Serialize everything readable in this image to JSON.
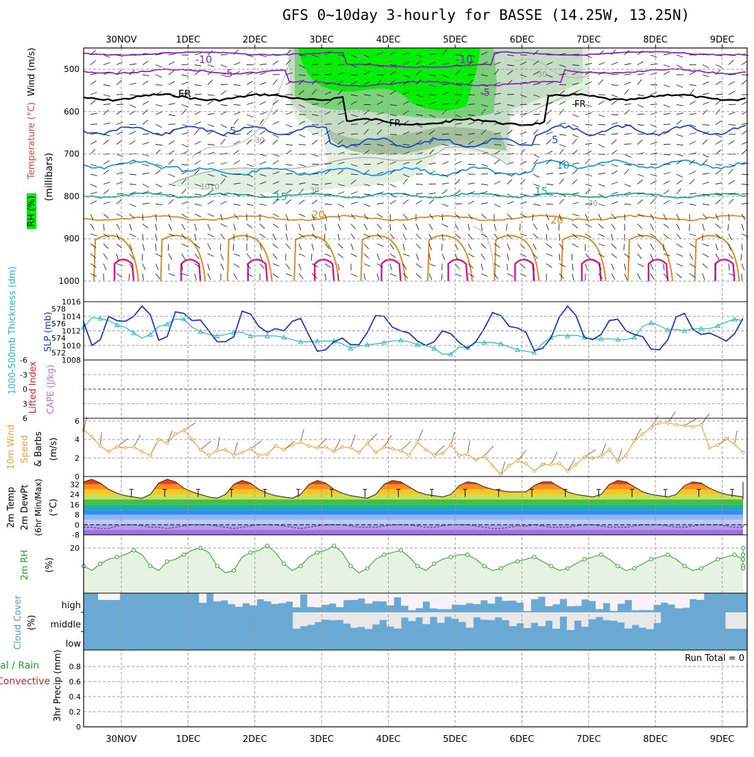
{
  "title": "GFS 0~10day 3-hourly for BASSE (14.25W, 13.25N)",
  "dates": [
    "30NOV",
    "1DEC",
    "2DEC",
    "3DEC",
    "4DEC",
    "5DEC",
    "6DEC",
    "7DEC",
    "8DEC",
    "9DEC"
  ],
  "colors": {
    "rh_light": "#e3efe0",
    "rh_mid": "#c7dcc4",
    "rh_dark": "#93b48f",
    "rh_green1": "#79d279",
    "rh_green2": "#00ee00",
    "purple": "#9020c8",
    "blue": "#1848d8",
    "sky": "#1898e0",
    "teal": "#10b090",
    "orange": "#e0881c",
    "magenta": "#e0108c",
    "slp": "#1836c8",
    "thick": "#20b8c0",
    "wind10": "#f0a040",
    "cloud": "#6aa9d4",
    "cloudpale": "#f6f2f8",
    "cloudgray": "#e8e8e8",
    "li": "#e02020",
    "rhfill": "#e6f3e3",
    "rhline": "#20a020"
  },
  "panels": {
    "upper": {
      "label_rh": "RH (%)",
      "label_temp": "Temperature (°C)",
      "label_wind": "Wind (m/s)",
      "label_mb": "(millibars)",
      "yticks": [
        "500",
        "600",
        "700",
        "800",
        "900",
        "1000"
      ],
      "contours": [
        {
          "name": "-10",
          "text": "-10"
        },
        {
          "name": "-5",
          "text": "-5"
        },
        {
          "name": "FR",
          "text": "FR"
        },
        {
          "name": "5",
          "text": "5"
        },
        {
          "name": "10",
          "text": "10"
        },
        {
          "name": "15",
          "text": "15"
        },
        {
          "name": "20",
          "text": "20"
        }
      ],
      "rh_labels": [
        "10",
        "30",
        "30",
        "30",
        "30",
        "10",
        "10"
      ]
    },
    "slp": {
      "label_thick": "1000-500mb Thickness (dm)",
      "label_slp": "SLP (mb)",
      "yticks_left": [
        "578",
        "576",
        "574",
        "572"
      ],
      "yticks_right": [
        "1016",
        "1014",
        "1012",
        "1010",
        "1008"
      ]
    },
    "cape": {
      "label_li": "Lifted Index",
      "label_cape": "CAPE (J/kg)",
      "yticks": [
        "-6",
        "-3",
        "0",
        "3",
        "6"
      ]
    },
    "wind10": {
      "label_a": "10m Wind",
      "label_b": "Speed",
      "label_c": "& Barbs",
      "label_unit": "(m/s)",
      "yticks": [
        "6",
        "4",
        "2",
        "0"
      ]
    },
    "temp2m": {
      "label_a": "2m Temp",
      "label_b": "2m DewPt",
      "label_c": "(6hr Min/Max)",
      "label_unit": "(°C)",
      "yticks": [
        "32",
        "24",
        "16",
        "8",
        "0",
        "-8"
      ]
    },
    "rh2m": {
      "label_a": "2m RH",
      "label_unit": "(%)",
      "yticks": [
        "20"
      ]
    },
    "cloud": {
      "label_a": "Cloud Cover",
      "label_unit": "(%)",
      "levels": [
        "high",
        "middle",
        "low"
      ]
    },
    "precip": {
      "label_a": "Total / Rain",
      "label_b": "Convective",
      "label_c": "3hr Precip (mm)",
      "run_total": "Run Total = 0",
      "yticks": [
        "0.8",
        "0.6",
        "0.4",
        "0.2",
        "0"
      ]
    }
  },
  "chart_data": [
    {
      "type": "line",
      "title": "GFS 0~10day 3-hourly for BASSE (14.25W, 13.25N)",
      "panel": "Sea level pressure and 1000-500mb thickness",
      "x_labels": [
        "30NOV",
        "1DEC",
        "2DEC",
        "3DEC",
        "4DEC",
        "5DEC",
        "6DEC",
        "7DEC",
        "8DEC",
        "9DEC"
      ],
      "series": [
        {
          "name": "SLP (mb)",
          "values": [
            1013.2,
            1010,
            1010.8,
            1014,
            1013.4,
            1013.3,
            1014,
            1015.4,
            1014.2,
            1010.7,
            1011.2,
            1014.6,
            1014.4,
            1013.4,
            1013.5,
            1012,
            1010.5,
            1010.5,
            1011.2,
            1014.7,
            1014.3,
            1012.6,
            1011.8,
            1012.3,
            1012,
            1013.3,
            1013.7,
            1011.4,
            1009.2,
            1009.4,
            1010.5,
            1011,
            1010.1,
            1010.1,
            1011.8,
            1014.1,
            1014,
            1012.5,
            1012,
            1011.7,
            1010.6,
            1010,
            1010.5,
            1012,
            1011.6,
            1010.4,
            1009.6,
            1010.5,
            1012.3,
            1014.5,
            1014.1,
            1012.6,
            1012.4,
            1011.8,
            1009.3,
            1009.6,
            1011,
            1013.9,
            1015.4,
            1014.1,
            1011.1,
            1010.8,
            1011.5,
            1013.4,
            1013.6,
            1012,
            1011.5,
            1011.2,
            1009.5,
            1009.4,
            1010.8,
            1013.9,
            1014.4,
            1012.2,
            1011.5,
            1011.7,
            1011.2,
            1010.6,
            1011.6,
            1013.7,
            1013.9,
            1012.2,
            1011.5,
            1011.5,
            1009.4,
            1009.3,
            1011.6,
            1013.7,
            1014.1,
            1012.8,
            1011.4,
            1011.6,
            1011.2,
            1011.2,
            1010.8,
            1010.8,
            1011.3,
            1011.7,
            1011.7,
            1011.8,
            1012
          ]
        },
        {
          "name": "Thickness (dm)",
          "values": [
            575.5,
            576.8,
            576.7,
            576.4,
            575.8,
            575.5,
            574.7,
            574,
            574.5,
            575.6,
            575.9,
            576.6,
            576.6,
            575.5,
            574.9,
            574.5,
            574.3,
            574.5,
            574.8,
            574.8,
            574.3,
            574.3,
            574.3,
            574.3,
            574.1,
            573.8,
            573.5,
            573.5,
            573.6,
            573.6,
            573.6,
            573.2,
            572.6,
            572.9,
            573.1,
            573.2,
            573.4,
            573.6,
            573.7,
            573.5,
            573.1,
            573,
            572.6,
            571.8,
            571.8,
            572.8,
            572.7,
            573.4,
            573.4,
            573.4,
            573.2,
            572.8,
            572.4,
            572.2,
            572,
            573.3,
            574.1,
            574.4,
            574.3,
            574.4,
            574.1,
            573.9,
            573.9,
            573.9,
            573.8,
            573.8,
            574.1,
            575.6,
            576.1,
            575.7,
            575.1,
            575.2,
            575,
            575.3,
            575.3,
            575.3,
            575.7,
            576.2,
            576.6,
            576.4,
            575.7,
            575.3,
            575.3,
            575.3,
            575.5,
            576.4,
            576.4,
            576.3,
            576.9,
            577.2,
            576.4,
            575.4,
            575.2,
            575.5,
            576,
            576,
            576,
            576,
            576,
            576,
            576
          ]
        }
      ],
      "ylim_slp": [
        1008,
        1016
      ],
      "ylim_thick": [
        571,
        579
      ]
    },
    {
      "type": "line",
      "panel": "Lifted index",
      "series": [
        {
          "name": "Lifted Index",
          "values": [
            0
          ]
        }
      ],
      "ylim": [
        -6,
        6
      ]
    },
    {
      "type": "line",
      "panel": "10m wind speed",
      "series": [
        {
          "name": "10m Wind Speed (m/s)",
          "values": [
            5,
            4.3,
            3.3,
            2.7,
            3.2,
            3.1,
            3.2,
            2.7,
            2.3,
            4,
            3.6,
            4.6,
            5,
            4,
            2.9,
            2.3,
            2.8,
            2.9,
            2.3,
            2.6,
            3,
            2.3,
            2.4,
            3.3,
            2.9,
            3.4,
            3.7,
            3.3,
            3.1,
            3.2,
            2.7,
            3.2,
            3.1,
            2.6,
            3.6,
            2.6,
            3.2,
            3,
            2.8,
            2.3,
            3.7,
            2.9,
            2.3,
            2.5,
            3.4,
            2.3,
            2.4,
            1.8,
            2.2,
            1.2,
            0.2,
            1.2,
            1.7,
            1.4,
            0.6,
            1.3,
            1.3,
            1.4,
            0.6,
            1.3,
            2.1,
            2,
            2.2,
            2.9,
            1.6,
            2.3,
            3.9,
            4.6,
            5.3,
            5.8,
            5.8,
            5.6,
            5.5,
            5.4,
            5.6,
            3.1,
            3.4,
            4.1,
            3.5,
            2.6,
            3.5,
            3.5,
            3.1,
            2.5,
            4.1,
            4.5,
            4.7,
            2.8,
            2.6,
            2.3,
            2.5,
            2.5,
            2.5,
            2.3,
            2.9,
            4.4,
            2.3,
            2.5,
            2.2,
            4.5,
            4.4,
            3.9,
            3.3,
            2.4,
            2,
            1.5,
            3.1,
            3,
            2.3,
            2.3,
            1.7,
            2.2,
            2,
            1.7,
            1.9,
            2.2
          ]
        }
      ],
      "ylim": [
        0,
        6
      ]
    },
    {
      "type": "area",
      "panel": "2m temperature and dewpoint",
      "series": [
        {
          "name": "2m Temp (°C)",
          "values": [
            34,
            36,
            33,
            28,
            25,
            23,
            22,
            21,
            24,
            33,
            36,
            34,
            29,
            26,
            24,
            22,
            21,
            24,
            32,
            35,
            33,
            28,
            25,
            23,
            22,
            21,
            24,
            32,
            35,
            33,
            28,
            25,
            23,
            22,
            21,
            24,
            32,
            35,
            34,
            30,
            26,
            24,
            23,
            22,
            24,
            31,
            34,
            33,
            30,
            28,
            27,
            26,
            26,
            26,
            31,
            34,
            34,
            30,
            26,
            24,
            23,
            22,
            24,
            32,
            35,
            34,
            30,
            26,
            24,
            23,
            22,
            24,
            31,
            34,
            33,
            29,
            26,
            24,
            23,
            22,
            24,
            31,
            34,
            33,
            29,
            26,
            24,
            23,
            22,
            24,
            31,
            34,
            33,
            29,
            26,
            24,
            23,
            22,
            23,
            22,
            20
          ]
        },
        {
          "name": "2m DewPt (°C)",
          "values": [
            -2,
            -2,
            -3,
            -3,
            -1,
            0,
            0,
            -1,
            -2,
            -2,
            -3,
            -2,
            -1,
            0,
            0,
            0,
            -1,
            -2,
            -3,
            -2,
            -1,
            0,
            0,
            0,
            -1,
            -2,
            -3,
            -2,
            -1,
            0,
            0,
            0,
            -1,
            -2,
            -2,
            -2,
            -1,
            0,
            0,
            0,
            -1,
            -2,
            -2,
            -1,
            0,
            0,
            0,
            -1,
            -2,
            -3,
            -3,
            -2,
            -1,
            -1,
            0,
            -1,
            -2,
            -2,
            -2,
            -1,
            0,
            0,
            -1,
            -2,
            -2,
            -2,
            -1,
            0,
            0,
            0,
            -1,
            -2,
            -2,
            -1,
            0,
            0,
            0,
            -1,
            -2,
            -2,
            -1,
            0,
            0,
            -1,
            -1,
            -2,
            -2,
            -2,
            -1,
            0,
            0,
            -1,
            -1,
            -2,
            -2,
            -1,
            0,
            0,
            -1,
            -1,
            -2
          ]
        }
      ],
      "ylim": [
        -8,
        36
      ]
    },
    {
      "type": "area",
      "panel": "2m relative humidity",
      "series": [
        {
          "name": "2m RH (%)",
          "values": [
            12,
            10,
            13,
            15,
            16,
            17,
            19,
            17,
            12,
            10,
            14,
            15,
            17,
            19,
            20,
            18,
            12,
            9,
            10,
            16,
            18,
            19,
            21,
            18,
            13,
            10,
            12,
            16,
            18,
            19,
            21,
            18,
            12,
            9,
            11,
            15,
            17,
            18,
            19,
            16,
            12,
            10,
            13,
            15,
            16,
            17,
            17,
            15,
            12,
            10,
            11,
            13,
            14,
            15,
            16,
            14,
            12,
            10,
            11,
            13,
            15,
            16,
            17,
            15,
            12,
            10,
            11,
            13,
            15,
            16,
            17,
            15,
            12,
            10,
            11,
            13,
            15,
            16,
            17,
            15,
            12,
            10,
            11,
            13,
            15,
            16,
            17,
            15,
            12,
            10,
            11,
            13,
            15,
            16,
            17,
            19,
            20,
            21
          ]
        }
      ],
      "ylim": [
        0,
        24
      ]
    },
    {
      "type": "heatmap",
      "panel": "Cloud cover",
      "rows": [
        "high",
        "middle",
        "low"
      ]
    },
    {
      "type": "bar",
      "panel": "3hr precipitation",
      "series": [
        {
          "name": "Total / Rain",
          "values": [
            0
          ]
        },
        {
          "name": "Convective",
          "values": [
            0
          ]
        }
      ],
      "ylim": [
        0,
        1
      ]
    }
  ]
}
